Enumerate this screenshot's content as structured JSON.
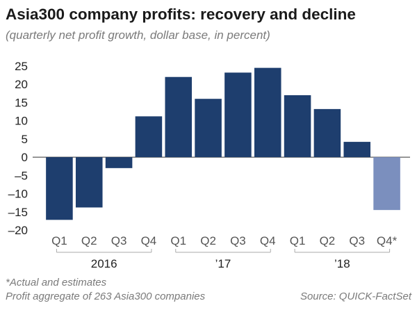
{
  "chart_data": {
    "type": "bar",
    "title": "Asia300 company profits: recovery and decline",
    "subtitle": "(quarterly net profit growth, dollar base, in percent)",
    "categories": [
      "Q1",
      "Q2",
      "Q3",
      "Q4",
      "Q1",
      "Q2",
      "Q3",
      "Q4",
      "Q1",
      "Q2",
      "Q3",
      "Q4*"
    ],
    "groups": [
      {
        "label": "2016",
        "start": 0,
        "end": 3
      },
      {
        "label": "’17",
        "start": 4,
        "end": 7
      },
      {
        "label": "’18",
        "start": 8,
        "end": 11
      }
    ],
    "values": [
      -17.2,
      -13.8,
      -3.0,
      11.2,
      22.0,
      16.0,
      23.2,
      24.5,
      17.0,
      13.2,
      4.2,
      -14.5
    ],
    "estimated": [
      false,
      false,
      false,
      false,
      false,
      false,
      false,
      false,
      false,
      false,
      false,
      true
    ],
    "ylim": [
      -20,
      25
    ],
    "yticks": [
      "25",
      "20",
      "15",
      "10",
      "5",
      "0",
      "–5",
      "–10",
      "–15",
      "–20"
    ],
    "ytick_values": [
      25,
      20,
      15,
      10,
      5,
      0,
      -5,
      -10,
      -15,
      -20
    ],
    "grid": false,
    "colors": {
      "actual": "#1e3e6e",
      "estimate": "#7b8fbe"
    },
    "xlabel": "",
    "ylabel": ""
  },
  "notes": {
    "estimate_note": "*Actual and estimates",
    "aggregate_note": "Profit aggregate of 263 Asia300 companies",
    "source": "Source: QUICK-FactSet"
  }
}
